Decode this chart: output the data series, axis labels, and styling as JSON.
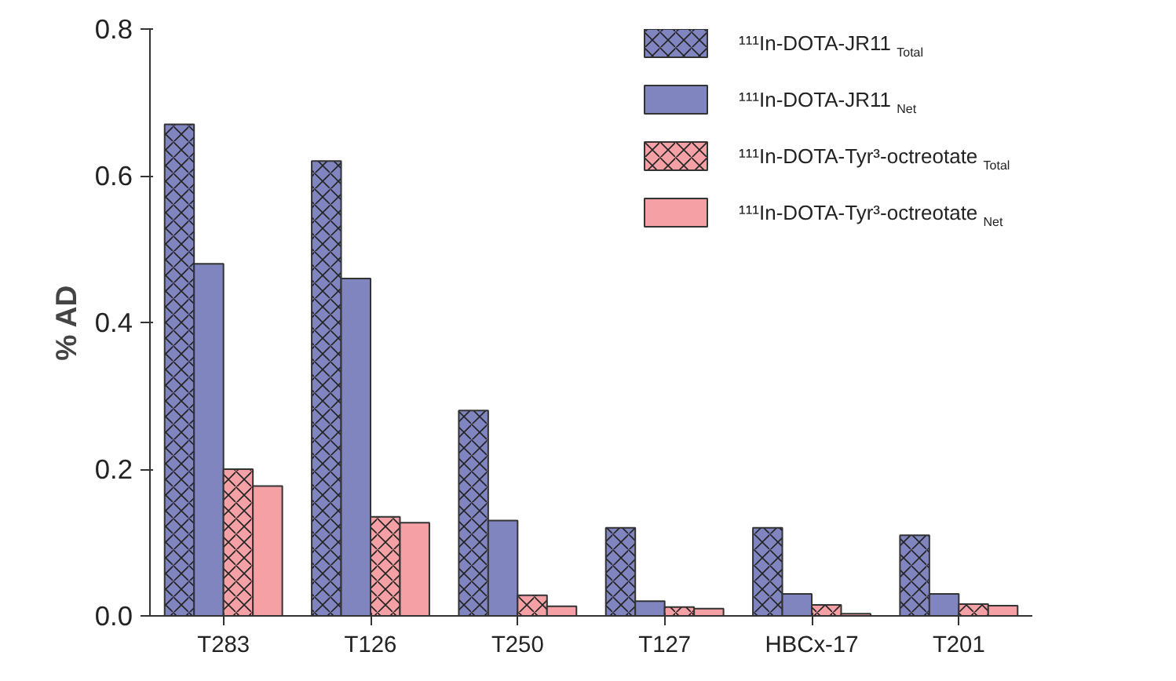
{
  "chart_data": {
    "type": "bar",
    "ylabel": "% AD",
    "categories": [
      "T283",
      "T126",
      "T250",
      "T127",
      "HBCx-17",
      "T201"
    ],
    "series": [
      {
        "name": "¹¹¹In-DOTA-JR11 $_{Total}$",
        "color": "#8085c0",
        "values": [
          0.67,
          0.62,
          0.28,
          0.12,
          0.12,
          0.11
        ]
      },
      {
        "name": "¹¹¹In-DOTA-JR11 $_{Net}$",
        "color": "#8085c0",
        "values": [
          0.48,
          0.46,
          0.13,
          0.02,
          0.03,
          0.03
        ]
      },
      {
        "name": "¹¹¹In-DOTA-Tyr³-octreotate $_{Total}$",
        "color": "#f4a0a4",
        "values": [
          0.2,
          0.135,
          0.028,
          0.012,
          0.015,
          0.016
        ]
      },
      {
        "name": "¹¹¹In-DOTA-Tyr³-octreotate $_{Net}$",
        "color": "#f4a0a4",
        "values": [
          0.177,
          0.127,
          0.013,
          0.01,
          0.003,
          0.014
        ]
      }
    ],
    "ylim": [
      0,
      0.8
    ],
    "yticks": [
      {
        "value": 0,
        "label": "0.0"
      },
      0.2,
      0.4,
      0.6,
      0.8
    ],
    "grid": false,
    "legend": "top right"
  }
}
